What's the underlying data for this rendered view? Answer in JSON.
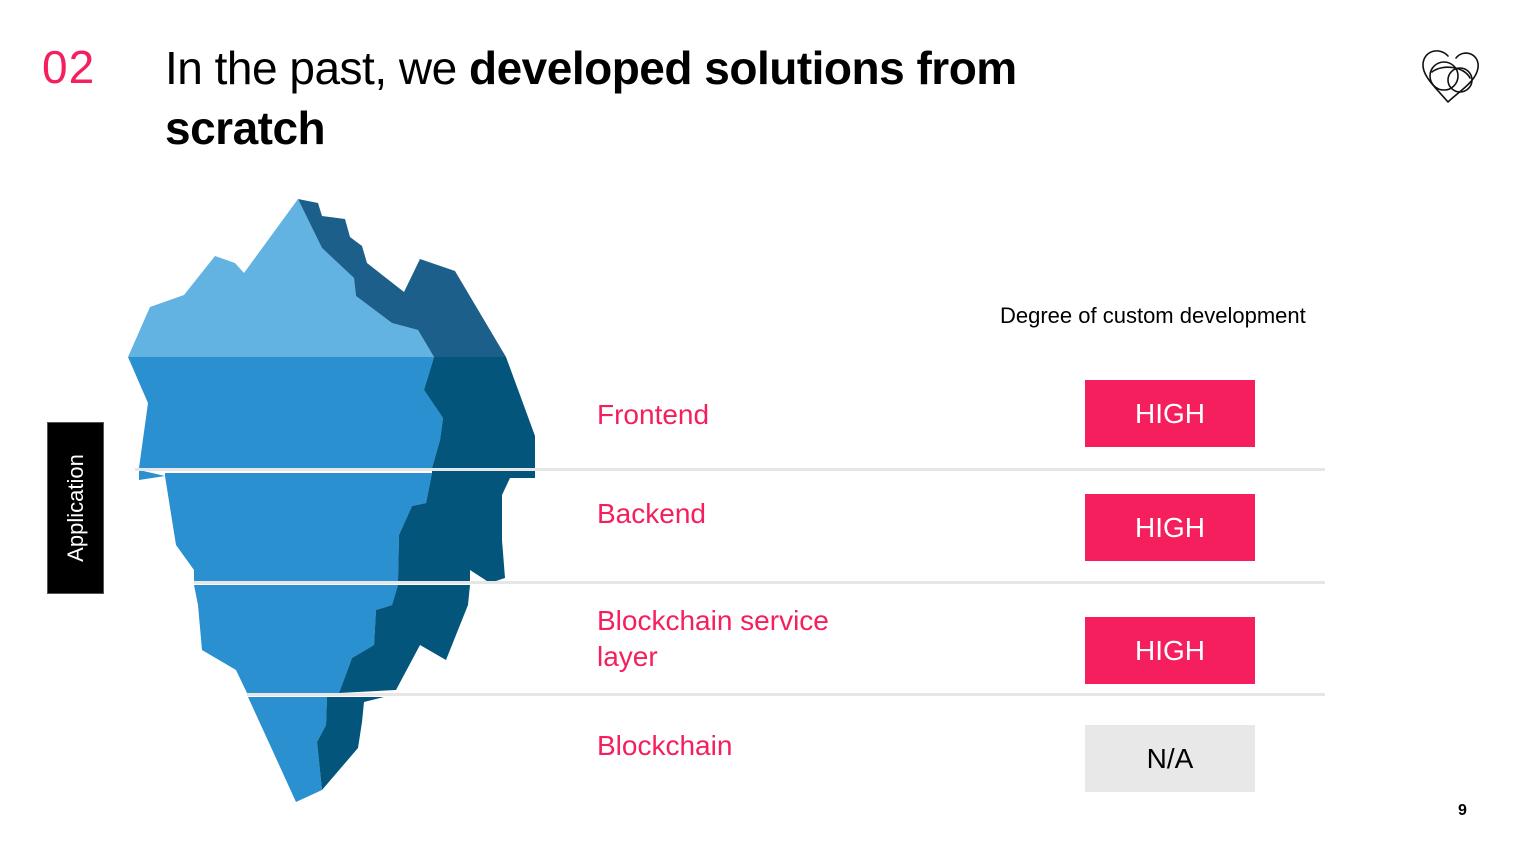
{
  "header": {
    "section_number": "02",
    "title_light": "In the past, we ",
    "title_bold": "developed solutions from scratch"
  },
  "logo": {
    "icon": "interlinked-hearts-logo"
  },
  "side_tag": {
    "label": "Application"
  },
  "table": {
    "column_header": "Degree of custom development",
    "rows": [
      {
        "layer": "Frontend",
        "degree": "HIGH"
      },
      {
        "layer": "Backend",
        "degree": "HIGH"
      },
      {
        "layer": "Blockchain service layer",
        "degree": "HIGH"
      },
      {
        "layer": "Blockchain",
        "degree": "N/A"
      }
    ]
  },
  "colors": {
    "accent": "#f41f5c",
    "ice_light": "#62b2e2",
    "ice_mid": "#2a90d0",
    "ice_dark": "#04557c",
    "ice_shadow_top": "#1b5f8a",
    "na_background": "#e8e8e8"
  },
  "footer": {
    "page_number": "9"
  }
}
